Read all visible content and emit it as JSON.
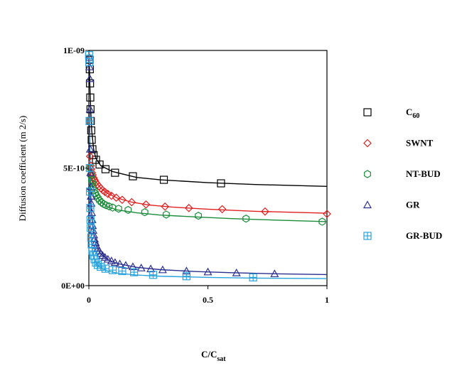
{
  "chart_data": {
    "type": "scatter",
    "title": "",
    "xlabel": "C/C",
    "xlabel_sub": "sat",
    "ylabel": "Diffusion coefficient (m 2/s)",
    "xlim": [
      0,
      1
    ],
    "ylim": [
      0,
      1e-09
    ],
    "x_ticks": [
      0,
      0.5,
      1
    ],
    "x_tick_labels": [
      "0",
      "0.5",
      "1"
    ],
    "y_ticks": [
      0,
      5e-10,
      1e-09
    ],
    "y_tick_labels": [
      "0E+00",
      "5E-10",
      "1E-09"
    ],
    "grid": false,
    "legend_position": "right",
    "series": [
      {
        "name": "C",
        "name_sub": "60",
        "marker": "square",
        "color": "#000000",
        "points": [
          [
            0.003,
            9.6e-10
          ],
          [
            0.004,
            9.2e-10
          ],
          [
            0.005,
            8.6e-10
          ],
          [
            0.006,
            8e-10
          ],
          [
            0.007,
            7.5e-10
          ],
          [
            0.008,
            7e-10
          ],
          [
            0.01,
            6.6e-10
          ],
          [
            0.012,
            6.2e-10
          ],
          [
            0.015,
            5.8e-10
          ],
          [
            0.02,
            5.55e-10
          ],
          [
            0.03,
            5.35e-10
          ],
          [
            0.045,
            5.15e-10
          ],
          [
            0.07,
            4.95e-10
          ],
          [
            0.11,
            4.8e-10
          ],
          [
            0.185,
            4.65e-10
          ],
          [
            0.315,
            4.5e-10
          ],
          [
            0.555,
            4.35e-10
          ]
        ],
        "fit": [
          [
            0.001,
            1e-09
          ],
          [
            0.004,
            8.6e-10
          ],
          [
            0.008,
            7.4e-10
          ],
          [
            0.012,
            6.6e-10
          ],
          [
            0.02,
            5.8e-10
          ],
          [
            0.03,
            5.4e-10
          ],
          [
            0.05,
            5.1e-10
          ],
          [
            0.1,
            4.85e-10
          ],
          [
            0.2,
            4.6e-10
          ],
          [
            0.3,
            4.5e-10
          ],
          [
            0.5,
            4.38e-10
          ],
          [
            0.7,
            4.3e-10
          ],
          [
            1.0,
            4.22e-10
          ]
        ]
      },
      {
        "name": "SWNT",
        "name_sub": "",
        "marker": "diamond",
        "color": "#e02020",
        "points": [
          [
            0.005,
            5.5e-10
          ],
          [
            0.008,
            5.1e-10
          ],
          [
            0.01,
            4.95e-10
          ],
          [
            0.013,
            4.8e-10
          ],
          [
            0.016,
            4.7e-10
          ],
          [
            0.02,
            4.58e-10
          ],
          [
            0.025,
            4.48e-10
          ],
          [
            0.03,
            4.38e-10
          ],
          [
            0.036,
            4.3e-10
          ],
          [
            0.043,
            4.22e-10
          ],
          [
            0.05,
            4.14e-10
          ],
          [
            0.058,
            4.06e-10
          ],
          [
            0.068,
            3.98e-10
          ],
          [
            0.08,
            3.9e-10
          ],
          [
            0.095,
            3.82e-10
          ],
          [
            0.115,
            3.74e-10
          ],
          [
            0.14,
            3.65e-10
          ],
          [
            0.18,
            3.55e-10
          ],
          [
            0.24,
            3.45e-10
          ],
          [
            0.32,
            3.36e-10
          ],
          [
            0.42,
            3.3e-10
          ],
          [
            0.56,
            3.25e-10
          ],
          [
            0.74,
            3.15e-10
          ],
          [
            1.0,
            3.05e-10
          ]
        ],
        "fit": [
          [
            0.0,
            5.3e-10
          ],
          [
            0.01,
            4.9e-10
          ],
          [
            0.02,
            4.6e-10
          ],
          [
            0.03,
            4.4e-10
          ],
          [
            0.05,
            4.15e-10
          ],
          [
            0.08,
            3.92e-10
          ],
          [
            0.12,
            3.72e-10
          ],
          [
            0.18,
            3.55e-10
          ],
          [
            0.25,
            3.43e-10
          ],
          [
            0.35,
            3.34e-10
          ],
          [
            0.5,
            3.25e-10
          ],
          [
            0.7,
            3.16e-10
          ],
          [
            1.0,
            3.08e-10
          ]
        ]
      },
      {
        "name": "NT-BUD",
        "name_sub": "",
        "marker": "hexagon",
        "color": "#1a8c3a",
        "points": [
          [
            0.006,
            5e-10
          ],
          [
            0.009,
            4.7e-10
          ],
          [
            0.012,
            4.5e-10
          ],
          [
            0.015,
            4.35e-10
          ],
          [
            0.018,
            4.2e-10
          ],
          [
            0.022,
            4.05e-10
          ],
          [
            0.027,
            3.92e-10
          ],
          [
            0.032,
            3.82e-10
          ],
          [
            0.038,
            3.72e-10
          ],
          [
            0.045,
            3.62e-10
          ],
          [
            0.053,
            3.54e-10
          ],
          [
            0.062,
            3.47e-10
          ],
          [
            0.072,
            3.42e-10
          ],
          [
            0.085,
            3.37e-10
          ],
          [
            0.1,
            3.32e-10
          ],
          [
            0.125,
            3.27e-10
          ],
          [
            0.165,
            3.22e-10
          ],
          [
            0.235,
            3.12e-10
          ],
          [
            0.325,
            3.02e-10
          ],
          [
            0.46,
            2.97e-10
          ],
          [
            0.66,
            2.85e-10
          ],
          [
            0.98,
            2.72e-10
          ]
        ],
        "fit": [
          [
            0.0,
            5.2e-10
          ],
          [
            0.01,
            4.6e-10
          ],
          [
            0.02,
            4.15e-10
          ],
          [
            0.03,
            3.85e-10
          ],
          [
            0.05,
            3.55e-10
          ],
          [
            0.08,
            3.35e-10
          ],
          [
            0.12,
            3.22e-10
          ],
          [
            0.2,
            3.1e-10
          ],
          [
            0.3,
            3e-10
          ],
          [
            0.45,
            2.92e-10
          ],
          [
            0.6,
            2.85e-10
          ],
          [
            0.8,
            2.78e-10
          ],
          [
            1.0,
            2.72e-10
          ]
        ]
      },
      {
        "name": "GR",
        "name_sub": "",
        "marker": "triangle",
        "color": "#2b2f8f",
        "points": [
          [
            0.002,
            9.7e-10
          ],
          [
            0.003,
            9.3e-10
          ],
          [
            0.004,
            8.8e-10
          ],
          [
            0.005,
            7.5e-10
          ],
          [
            0.006,
            5.8e-10
          ],
          [
            0.007,
            4.8e-10
          ],
          [
            0.008,
            4.2e-10
          ],
          [
            0.009,
            3.8e-10
          ],
          [
            0.01,
            3.5e-10
          ],
          [
            0.012,
            3.1e-10
          ],
          [
            0.014,
            2.8e-10
          ],
          [
            0.016,
            2.55e-10
          ],
          [
            0.018,
            2.35e-10
          ],
          [
            0.021,
            2.15e-10
          ],
          [
            0.024,
            1.98e-10
          ],
          [
            0.028,
            1.83e-10
          ],
          [
            0.032,
            1.7e-10
          ],
          [
            0.037,
            1.58e-10
          ],
          [
            0.043,
            1.47e-10
          ],
          [
            0.05,
            1.37e-10
          ],
          [
            0.058,
            1.28e-10
          ],
          [
            0.068,
            1.2e-10
          ],
          [
            0.08,
            1.12e-10
          ],
          [
            0.095,
            1.05e-10
          ],
          [
            0.11,
            9.8e-11
          ],
          [
            0.13,
            9.2e-11
          ],
          [
            0.155,
            8.6e-11
          ],
          [
            0.185,
            8e-11
          ],
          [
            0.22,
            7.5e-11
          ],
          [
            0.26,
            7.1e-11
          ],
          [
            0.31,
            6.7e-11
          ],
          [
            0.41,
            6.2e-11
          ],
          [
            0.5,
            5.8e-11
          ],
          [
            0.62,
            5.4e-11
          ],
          [
            0.78,
            5e-11
          ]
        ],
        "fit": [
          [
            0.002,
            7.5e-10
          ],
          [
            0.005,
            4.8e-10
          ],
          [
            0.01,
            3.3e-10
          ],
          [
            0.02,
            2.2e-10
          ],
          [
            0.03,
            1.75e-10
          ],
          [
            0.05,
            1.35e-10
          ],
          [
            0.08,
            1.1e-10
          ],
          [
            0.12,
            9.4e-11
          ],
          [
            0.2,
            7.8e-11
          ],
          [
            0.3,
            6.8e-11
          ],
          [
            0.45,
            6e-11
          ],
          [
            0.6,
            5.5e-11
          ],
          [
            0.8,
            5e-11
          ],
          [
            1.0,
            4.7e-11
          ]
        ]
      },
      {
        "name": "GR-BUD",
        "name_sub": "",
        "marker": "square-cross",
        "color": "#29a3dd",
        "points": [
          [
            0.001,
            9.8e-10
          ],
          [
            0.002,
            9.5e-10
          ],
          [
            0.003,
            7e-10
          ],
          [
            0.004,
            5e-10
          ],
          [
            0.005,
            4e-10
          ],
          [
            0.006,
            3.3e-10
          ],
          [
            0.007,
            2.8e-10
          ],
          [
            0.008,
            2.45e-10
          ],
          [
            0.01,
            2.05e-10
          ],
          [
            0.012,
            1.75e-10
          ],
          [
            0.015,
            1.48e-10
          ],
          [
            0.019,
            1.28e-10
          ],
          [
            0.024,
            1.12e-10
          ],
          [
            0.03,
            9.8e-11
          ],
          [
            0.038,
            8.8e-11
          ],
          [
            0.05,
            8e-11
          ],
          [
            0.07,
            7.2e-11
          ],
          [
            0.1,
            6.6e-11
          ],
          [
            0.14,
            6.2e-11
          ],
          [
            0.19,
            5.7e-11
          ],
          [
            0.27,
            4.6e-11
          ],
          [
            0.41,
            4e-11
          ],
          [
            0.69,
            3.5e-11
          ]
        ],
        "fit": [
          [
            0.002,
            6.5e-10
          ],
          [
            0.004,
            4e-10
          ],
          [
            0.007,
            2.6e-10
          ],
          [
            0.01,
            1.95e-10
          ],
          [
            0.015,
            1.45e-10
          ],
          [
            0.02,
            1.2e-10
          ],
          [
            0.03,
            9.5e-11
          ],
          [
            0.05,
            7.5e-11
          ],
          [
            0.08,
            6.2e-11
          ],
          [
            0.12,
            5.3e-11
          ],
          [
            0.2,
            4.5e-11
          ],
          [
            0.3,
            4e-11
          ],
          [
            0.5,
            3.5e-11
          ],
          [
            0.7,
            3.2e-11
          ],
          [
            1.0,
            3e-11
          ]
        ]
      }
    ]
  }
}
